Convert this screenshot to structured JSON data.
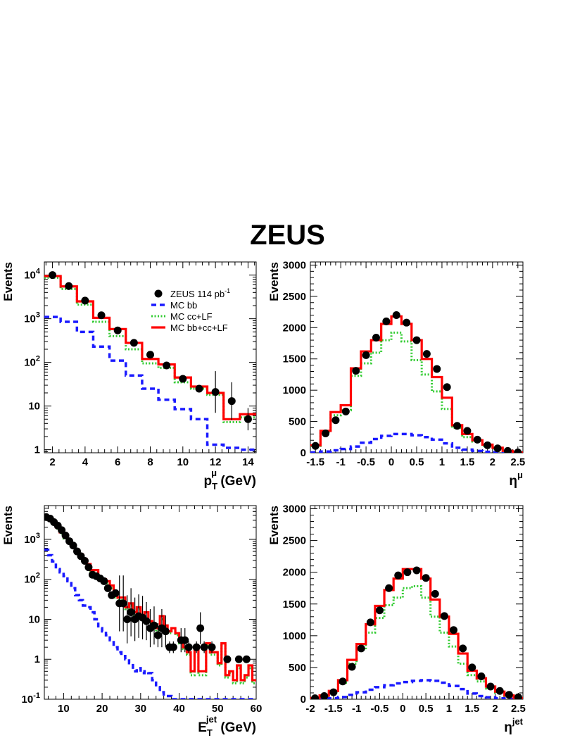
{
  "title": "ZEUS",
  "colors": {
    "data": "#000000",
    "bb": "#1a1aff",
    "cclf": "#33cc33",
    "total": "#ff0000"
  },
  "legend": {
    "entries": [
      {
        "label": "ZEUS 114 pb",
        "sup": "-1",
        "style": "marker"
      },
      {
        "label": "MC bb",
        "style": "dashed-blue"
      },
      {
        "label": "MC cc+LF",
        "style": "dotted-green"
      },
      {
        "label": "MC bb+cc+LF",
        "style": "solid-red"
      }
    ]
  },
  "chart_data": [
    {
      "type": "step-histogram",
      "id": "pt-mu",
      "xlabel": "p",
      "xlabel_sub": "T",
      "xlabel_sup": "μ",
      "xlabel_unit": " (GeV)",
      "ylabel": "Events",
      "log": true,
      "xlim": [
        1.5,
        14.5
      ],
      "ylim": [
        0.85,
        20000
      ],
      "xticks": [
        "2",
        "4",
        "6",
        "8",
        "10",
        "12",
        "14"
      ],
      "yticks": [
        "1",
        "10",
        "10^2",
        "10^3",
        "10^4"
      ],
      "bins": [
        1.5,
        2.5,
        3.5,
        4.5,
        5.5,
        6.5,
        7.5,
        8.5,
        9.5,
        10.5,
        11.5,
        12.5,
        13.5,
        14.5
      ],
      "series": [
        {
          "key": "total",
          "values": [
            9500,
            5500,
            2500,
            1050,
            580,
            280,
            120,
            90,
            45,
            28,
            20,
            5,
            6.5
          ]
        },
        {
          "key": "cclf",
          "values": [
            8700,
            4800,
            2100,
            850,
            400,
            200,
            95,
            75,
            35,
            25,
            18,
            4.3,
            5.5
          ]
        },
        {
          "key": "bb",
          "values": [
            1100,
            850,
            500,
            230,
            110,
            50,
            25,
            14,
            8.5,
            5,
            1.3,
            1.1,
            1
          ]
        }
      ],
      "points": {
        "x": [
          2,
          3,
          4,
          5,
          6,
          7,
          8,
          9,
          10,
          11,
          12,
          13,
          14
        ],
        "y": [
          10000,
          5600,
          2600,
          1200,
          540,
          280,
          150,
          85,
          42,
          25,
          21,
          13,
          5
        ],
        "err": [
          0,
          0,
          0,
          0,
          0,
          0,
          0,
          0,
          0,
          0,
          3,
          2.7,
          1.8
        ]
      }
    },
    {
      "type": "step-histogram",
      "id": "eta-mu",
      "xlabel": "η",
      "xlabel_sup": "μ",
      "ylabel": "Events",
      "log": false,
      "xlim": [
        -1.6,
        2.6
      ],
      "ylim": [
        0,
        3050
      ],
      "xticks": [
        "-1.5",
        "-1",
        "-0.5",
        "0",
        "0.5",
        "1",
        "1.5",
        "2",
        "2.5"
      ],
      "yticks": [
        "0",
        "500",
        "1000",
        "1500",
        "2000",
        "2500",
        "3000"
      ],
      "bins": [
        -1.6,
        -1.4,
        -1.2,
        -1.0,
        -0.8,
        -0.6,
        -0.4,
        -0.2,
        0.0,
        0.2,
        0.4,
        0.6,
        0.8,
        1.0,
        1.2,
        1.4,
        1.6,
        1.8,
        2.0,
        2.2,
        2.4,
        2.6
      ],
      "series": [
        {
          "key": "total",
          "values": [
            120,
            350,
            650,
            760,
            1350,
            1620,
            1800,
            2060,
            2180,
            2060,
            1800,
            1500,
            1210,
            880,
            440,
            300,
            200,
            130,
            80,
            30,
            5
          ]
        },
        {
          "key": "cclf",
          "values": [
            110,
            330,
            600,
            680,
            1230,
            1430,
            1600,
            1800,
            1920,
            1780,
            1480,
            1250,
            980,
            700,
            400,
            250,
            180,
            110,
            70,
            25,
            3
          ]
        },
        {
          "key": "bb",
          "values": [
            5,
            20,
            40,
            60,
            100,
            160,
            220,
            270,
            300,
            300,
            280,
            250,
            210,
            150,
            80,
            50,
            30,
            15,
            8,
            3,
            1
          ]
        }
      ],
      "points": {
        "x": [
          -1.5,
          -1.3,
          -1.1,
          -0.9,
          -0.7,
          -0.5,
          -0.3,
          -0.1,
          0.1,
          0.3,
          0.5,
          0.7,
          0.9,
          1.1,
          1.3,
          1.5,
          1.7,
          1.9,
          2.1,
          2.3,
          2.5
        ],
        "y": [
          110,
          310,
          520,
          660,
          1310,
          1560,
          1840,
          2100,
          2200,
          2080,
          1800,
          1580,
          1340,
          1050,
          430,
          350,
          210,
          120,
          70,
          30,
          5
        ],
        "err": []
      }
    },
    {
      "type": "step-histogram",
      "id": "et-jet",
      "xlabel": "E",
      "xlabel_sub": "T",
      "xlabel_sup": "jet",
      "xlabel_unit": " (GeV)",
      "ylabel": "Events",
      "log": true,
      "xlim": [
        5,
        60
      ],
      "ylim": [
        0.1,
        7000
      ],
      "xticks": [
        "10",
        "20",
        "30",
        "40",
        "50",
        "60"
      ],
      "yticks": [
        "10^-1",
        "1",
        "10",
        "10^2",
        "10^3"
      ],
      "bins": [
        5,
        6,
        7,
        8,
        9,
        10,
        11,
        12,
        13,
        14,
        15,
        16,
        17,
        18,
        19,
        20,
        21,
        22,
        23,
        24,
        25,
        26,
        27,
        28,
        29,
        30,
        31,
        32,
        33,
        34,
        35,
        36,
        37,
        38,
        39,
        40,
        41,
        42,
        43,
        44,
        45,
        46,
        47,
        48,
        49,
        50,
        51,
        52,
        53,
        54,
        55,
        56,
        57,
        58,
        59,
        60
      ],
      "series": [
        {
          "key": "total",
          "values": [
            3600,
            3200,
            2600,
            2000,
            1500,
            1150,
            900,
            700,
            550,
            420,
            320,
            240,
            170,
            170,
            110,
            100,
            90,
            70,
            40,
            35,
            35,
            20,
            25,
            15,
            20,
            12,
            15,
            9,
            7,
            6,
            12,
            7,
            5,
            6,
            4.5,
            3,
            2,
            1.5,
            0.5,
            2,
            0.5,
            0.5,
            2.5,
            1.5,
            1.5,
            0.8,
            2.5,
            0.4,
            0.5,
            0.3,
            0.7,
            0.3,
            0.4,
            0.7,
            0.3
          ]
        },
        {
          "key": "cclf",
          "values": [
            3300,
            3000,
            2400,
            1850,
            1400,
            1050,
            820,
            640,
            510,
            390,
            290,
            220,
            160,
            140,
            105,
            90,
            80,
            60,
            35,
            30,
            30,
            18,
            22,
            12,
            18,
            10,
            12,
            8,
            6,
            5,
            10,
            6,
            4.5,
            5,
            4,
            2.5,
            1.8,
            1.3,
            0.4,
            1.8,
            0.4,
            0.4,
            2.2,
            1.3,
            1.3,
            0.7,
            2.2,
            0.35,
            0.45,
            0.25,
            0.6,
            0.25,
            0.35,
            0.6,
            0.25
          ]
        },
        {
          "key": "bb",
          "values": [
            550,
            400,
            280,
            180,
            150,
            120,
            90,
            60,
            40,
            30,
            22,
            20,
            15,
            10,
            6,
            5,
            4,
            3,
            2,
            1.5,
            1.2,
            1,
            0.8,
            0.5,
            0.6,
            0.45,
            0.5,
            0.45,
            0.3,
            0.2,
            0.15,
            0.12,
            0.12,
            0.1,
            0.1,
            0.1,
            0.1,
            0.1,
            0.1,
            0.1,
            0.1,
            0.1,
            0.1,
            0.1,
            0.1,
            0.1,
            0.1,
            0.1,
            0.1,
            0.1,
            0.1,
            0.1,
            0.1,
            0.1,
            0.1
          ]
        }
      ],
      "points": {
        "x": [
          5.5,
          6.5,
          7.5,
          8.5,
          9.5,
          10.5,
          11.5,
          12.5,
          13.5,
          14.5,
          15.5,
          16.5,
          17.5,
          18.5,
          19.5,
          20.5,
          21.5,
          22.5,
          23.5,
          24.5,
          25.5,
          26.5,
          27.5,
          28.5,
          29.5,
          30.5,
          31.5,
          32.5,
          33.5,
          34.5,
          35.5,
          36.5,
          37.5,
          38.5,
          40.5,
          41.5,
          42.5,
          44.5,
          45.5,
          46.5,
          48.5,
          52.5,
          55.5,
          57.5
        ],
        "y": [
          3600,
          3300,
          2700,
          2200,
          1700,
          1250,
          900,
          700,
          500,
          380,
          290,
          200,
          130,
          120,
          105,
          90,
          60,
          40,
          45,
          25,
          25,
          10,
          15,
          10,
          12,
          11,
          9,
          6,
          7,
          4,
          6,
          5,
          2,
          2,
          3,
          3,
          2,
          2,
          6,
          2,
          2,
          1,
          1,
          1
        ],
        "err": [
          0,
          0,
          0,
          0,
          0,
          0,
          0,
          0,
          0,
          0,
          0,
          0,
          0,
          0,
          0,
          0,
          0,
          0,
          0,
          5,
          5,
          4,
          4,
          3.5,
          3.5,
          3.5,
          3,
          3,
          3,
          2,
          3,
          2.5,
          1.4,
          1.4,
          2,
          2,
          1.4,
          1.4,
          2.5,
          1.4,
          1.4,
          1,
          1,
          1
        ]
      }
    },
    {
      "type": "step-histogram",
      "id": "eta-jet",
      "xlabel": "η",
      "xlabel_sup": "jet",
      "ylabel": "Events",
      "log": false,
      "xlim": [
        -2,
        2.6
      ],
      "ylim": [
        0,
        3050
      ],
      "xticks": [
        "-2",
        "-1.5",
        "-1",
        "-0.5",
        "0",
        "0.5",
        "1",
        "1.5",
        "2",
        "2.5"
      ],
      "yticks": [
        "0",
        "500",
        "1000",
        "1500",
        "2000",
        "2500",
        "3000"
      ],
      "bins": [
        -2.0,
        -1.8,
        -1.6,
        -1.4,
        -1.2,
        -1.0,
        -0.8,
        -0.6,
        -0.4,
        -0.2,
        0.0,
        0.2,
        0.4,
        0.6,
        0.8,
        1.0,
        1.2,
        1.4,
        1.6,
        1.8,
        2.0,
        2.2,
        2.4,
        2.6
      ],
      "series": [
        {
          "key": "total",
          "values": [
            20,
            60,
            130,
            300,
            620,
            870,
            1180,
            1470,
            1720,
            1900,
            2050,
            2050,
            1900,
            1570,
            1300,
            1030,
            720,
            450,
            330,
            200,
            120,
            60,
            20
          ]
        },
        {
          "key": "cclf",
          "values": [
            15,
            50,
            110,
            260,
            560,
            780,
            1050,
            1280,
            1480,
            1600,
            1750,
            1780,
            1600,
            1300,
            1050,
            830,
            560,
            380,
            280,
            170,
            100,
            50,
            15
          ]
        },
        {
          "key": "bb",
          "values": [
            2,
            5,
            15,
            35,
            70,
            110,
            150,
            190,
            220,
            250,
            270,
            290,
            300,
            290,
            260,
            210,
            160,
            90,
            50,
            30,
            15,
            5,
            2
          ]
        }
      ],
      "points": {
        "x": [
          -1.9,
          -1.7,
          -1.5,
          -1.3,
          -1.1,
          -0.9,
          -0.7,
          -0.5,
          -0.3,
          -0.1,
          0.1,
          0.3,
          0.5,
          0.7,
          0.9,
          1.1,
          1.3,
          1.5,
          1.7,
          1.9,
          2.1,
          2.3,
          2.5
        ],
        "y": [
          15,
          50,
          110,
          280,
          510,
          800,
          1210,
          1400,
          1750,
          1950,
          2000,
          2030,
          1910,
          1660,
          1310,
          1090,
          800,
          500,
          360,
          200,
          130,
          70,
          30
        ],
        "err": []
      }
    }
  ]
}
